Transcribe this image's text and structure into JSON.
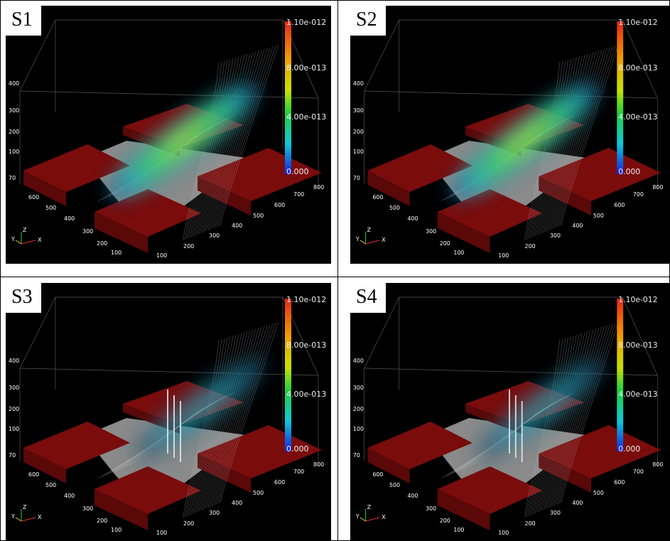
{
  "panels": [
    {
      "label": "S1"
    },
    {
      "label": "S2"
    },
    {
      "label": "S3"
    },
    {
      "label": "S4"
    }
  ],
  "colorbar": [
    "1.10e-012",
    "8.00e-013",
    "4.00e-013",
    "0.000"
  ],
  "z_ticks": [
    "400",
    "300",
    "200",
    "100",
    "70"
  ],
  "y_ticks": [
    "600",
    "500",
    "400",
    "300",
    "200",
    "100"
  ],
  "x_ticks": [
    "100",
    "200",
    "300",
    "400",
    "500",
    "600",
    "700",
    "800"
  ],
  "triad": [
    "Z",
    "Y",
    "X"
  ]
}
